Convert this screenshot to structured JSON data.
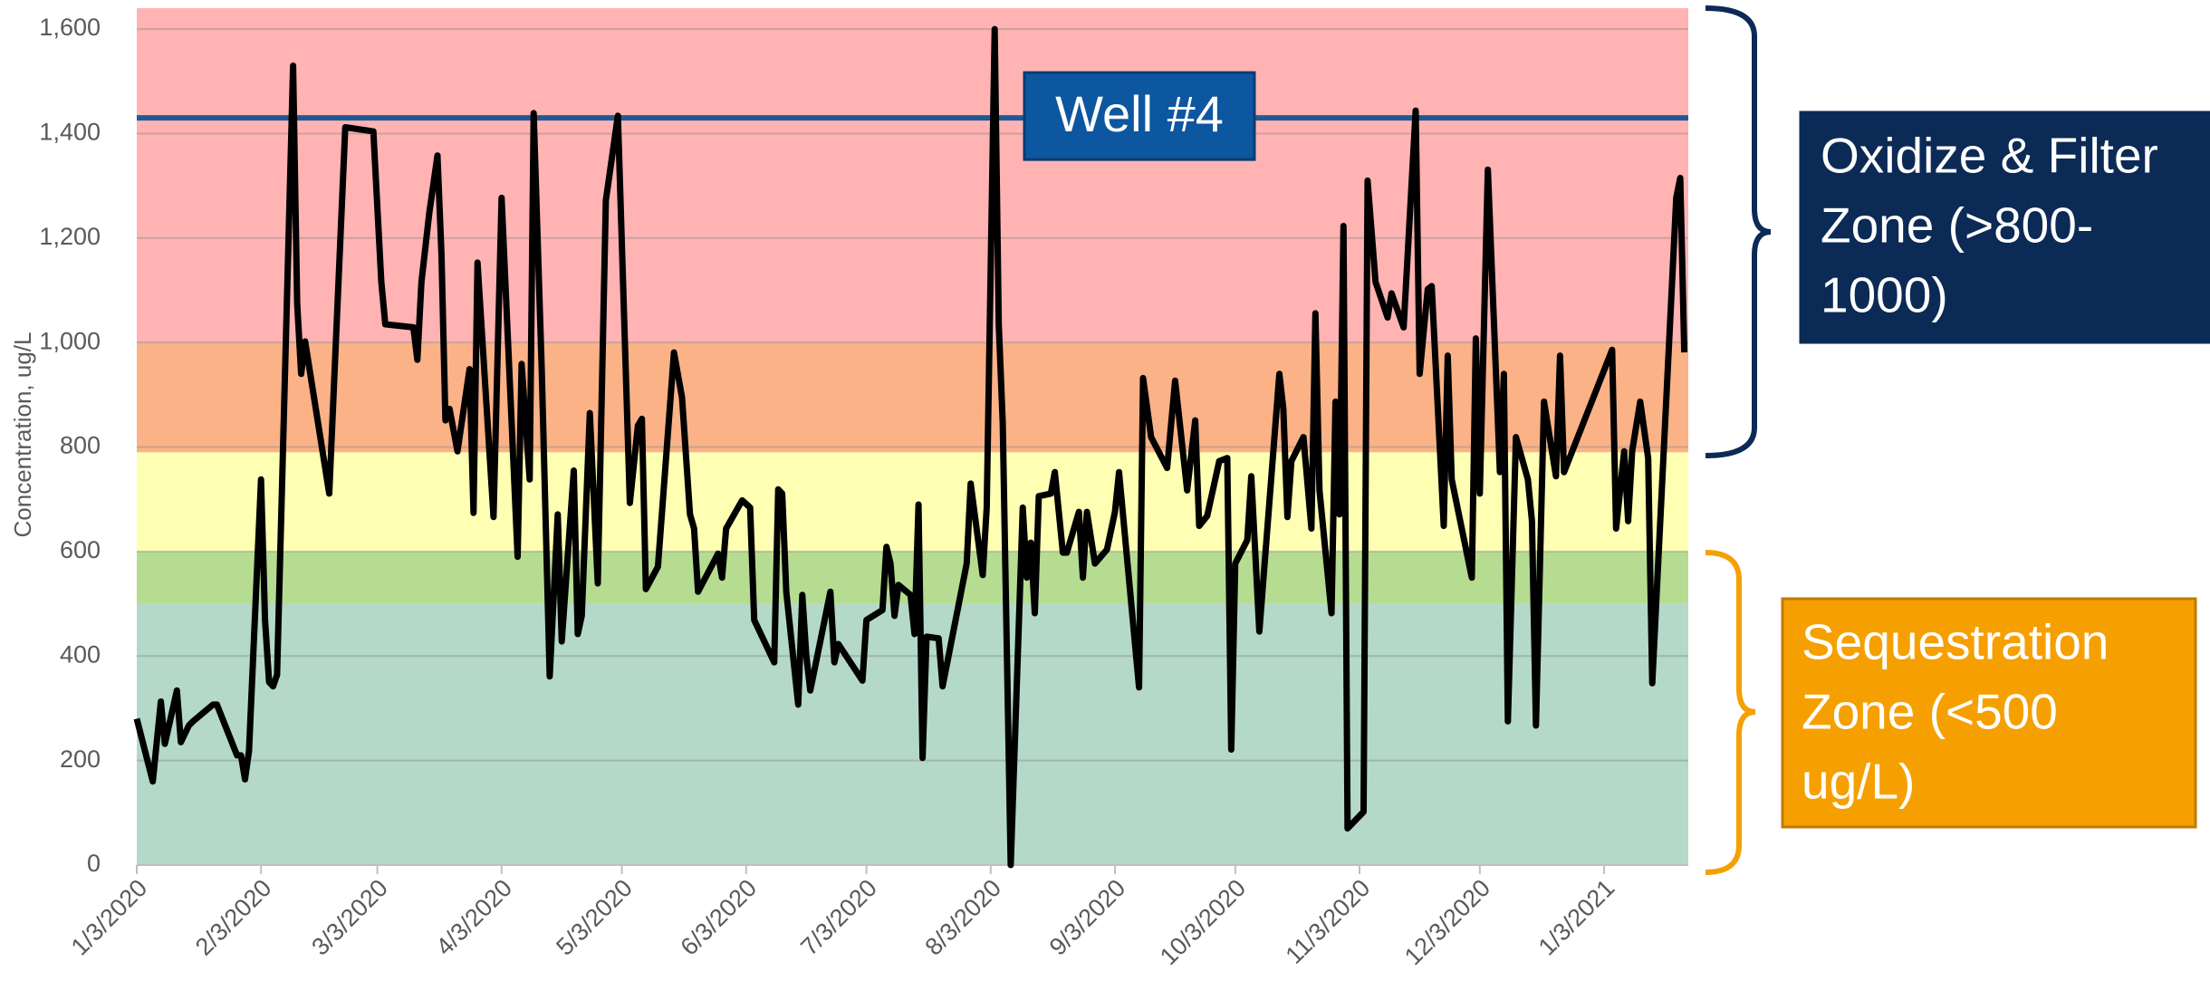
{
  "chart_data": {
    "type": "line",
    "y_label": "Concentration, ug/L",
    "x": [
      "1/3/2020",
      "1/7/2020",
      "1/9/2020",
      "1/10/2020",
      "1/13/2020",
      "1/14/2020",
      "1/16/2020",
      "1/17/2020",
      "1/22/2020",
      "1/23/2020",
      "1/28/2020",
      "1/29/2020",
      "1/30/2020",
      "1/31/2020",
      "2/3/2020",
      "2/4/2020",
      "2/5/2020",
      "2/6/2020",
      "2/7/2020",
      "2/11/2020",
      "2/12/2020",
      "2/13/2020",
      "2/14/2020",
      "2/20/2020",
      "2/24/2020",
      "3/2/2020",
      "3/4/2020",
      "3/5/2020",
      "3/12/2020",
      "3/13/2020",
      "3/14/2020",
      "3/16/2020",
      "3/18/2020",
      "3/19/2020",
      "3/20/2020",
      "3/21/2020",
      "3/23/2020",
      "3/26/2020",
      "3/27/2020",
      "3/28/2020",
      "4/1/2020",
      "4/3/2020",
      "4/7/2020",
      "4/8/2020",
      "4/10/2020",
      "4/11/2020",
      "4/13/2020",
      "4/15/2020",
      "4/17/2020",
      "4/18/2020",
      "4/21/2020",
      "4/22/2020",
      "4/23/2020",
      "4/25/2020",
      "4/27/2020",
      "4/29/2020",
      "5/2/2020",
      "5/5/2020",
      "5/7/2020",
      "5/8/2020",
      "5/9/2020",
      "5/12/2020",
      "5/16/2020",
      "5/18/2020",
      "5/20/2020",
      "5/21/2020",
      "5/22/2020",
      "5/27/2020",
      "5/28/2020",
      "5/29/2020",
      "6/2/2020",
      "6/4/2020",
      "6/5/2020",
      "6/10/2020",
      "6/11/2020",
      "6/12/2020",
      "6/13/2020",
      "6/16/2020",
      "6/17/2020",
      "6/18/2020",
      "6/19/2020",
      "6/24/2020",
      "6/25/2020",
      "6/26/2020",
      "7/2/2020",
      "7/3/2020",
      "7/7/2020",
      "7/8/2020",
      "7/9/2020",
      "7/10/2020",
      "7/11/2020",
      "7/14/2020",
      "7/15/2020",
      "7/16/2020",
      "7/17/2020",
      "7/18/2020",
      "7/21/2020",
      "7/22/2020",
      "7/28/2020",
      "7/29/2020",
      "8/1/2020",
      "8/2/2020",
      "8/4/2020",
      "8/5/2020",
      "8/6/2020",
      "8/8/2020",
      "8/11/2020",
      "8/12/2020",
      "8/13/2020",
      "8/14/2020",
      "8/15/2020",
      "8/18/2020",
      "8/19/2020",
      "8/21/2020",
      "8/22/2020",
      "8/25/2020",
      "8/26/2020",
      "8/27/2020",
      "8/29/2020",
      "9/1/2020",
      "9/3/2020",
      "9/4/2020",
      "9/9/2020",
      "9/10/2020",
      "9/12/2020",
      "9/16/2020",
      "9/18/2020",
      "9/21/2020",
      "9/23/2020",
      "9/24/2020",
      "9/26/2020",
      "9/29/2020",
      "10/1/2020",
      "10/2/2020",
      "10/3/2020",
      "10/6/2020",
      "10/7/2020",
      "10/9/2020",
      "10/14/2020",
      "10/15/2020",
      "10/16/2020",
      "10/17/2020",
      "10/20/2020",
      "10/22/2020",
      "10/23/2020",
      "10/24/2020",
      "10/27/2020",
      "10/28/2020",
      "10/29/2020",
      "10/30/2020",
      "10/31/2020",
      "11/4/2020",
      "11/5/2020",
      "11/7/2020",
      "11/10/2020",
      "11/11/2020",
      "11/14/2020",
      "11/17/2020",
      "11/18/2020",
      "11/20/2020",
      "11/21/2020",
      "11/24/2020",
      "11/25/2020",
      "11/26/2020",
      "12/1/2020",
      "12/2/2020",
      "12/3/2020",
      "12/5/2020",
      "12/8/2020",
      "12/9/2020",
      "12/10/2020",
      "12/12/2020",
      "12/15/2020",
      "12/16/2020",
      "12/17/2020",
      "12/19/2020",
      "12/22/2020",
      "12/23/2020",
      "12/24/2020",
      "1/5/2021",
      "1/6/2021",
      "1/8/2021",
      "1/9/2021",
      "1/10/2021",
      "1/12/2021",
      "1/14/2021",
      "1/15/2021",
      "1/21/2021",
      "1/22/2021",
      "1/23/2021"
    ],
    "values": [
      280,
      160,
      313,
      232,
      334,
      235,
      267,
      275,
      307,
      307,
      210,
      210,
      164,
      218,
      738,
      469,
      350,
      342,
      364,
      1530,
      1075,
      940,
      1002,
      711,
      1412,
      1404,
      1116,
      1035,
      1029,
      967,
      1116,
      1250,
      1358,
      1170,
      851,
      873,
      792,
      949,
      674,
      1153,
      666,
      1277,
      590,
      959,
      738,
      1439,
      949,
      361,
      671,
      428,
      755,
      442,
      477,
      865,
      539,
      1272,
      1434,
      693,
      841,
      854,
      528,
      571,
      981,
      895,
      671,
      644,
      523,
      596,
      550,
      644,
      698,
      684,
      469,
      388,
      719,
      711,
      523,
      307,
      517,
      401,
      334,
      523,
      388,
      423,
      353,
      469,
      488,
      609,
      577,
      477,
      536,
      517,
      442,
      690,
      205,
      437,
      434,
      342,
      577,
      730,
      555,
      684,
      1600,
      1035,
      846,
      0,
      684,
      550,
      617,
      482,
      706,
      711,
      752,
      598,
      598,
      676,
      550,
      676,
      577,
      604,
      676,
      752,
      340,
      932,
      819,
      760,
      927,
      717,
      851,
      649,
      668,
      773,
      779,
      221,
      577,
      622,
      744,
      447,
      940,
      873,
      666,
      773,
      819,
      644,
      1056,
      717,
      482,
      887,
      671,
      1223,
      70,
      102,
      1310,
      1116,
      1048,
      1094,
      1029,
      1444,
      940,
      1102,
      1108,
      649,
      975,
      738,
      550,
      1008,
      711,
      1331,
      752,
      940,
      275,
      819,
      738,
      658,
      267,
      887,
      744,
      975,
      752,
      986,
      644,
      792,
      658,
      792,
      887,
      779,
      348,
      1277,
      1315,
      981
    ],
    "color": "#000000",
    "xlim": [
      "1/3/2020",
      "1/24/2021"
    ],
    "xticks": [
      "1/3/2020",
      "2/3/2020",
      "3/3/2020",
      "4/3/2020",
      "5/3/2020",
      "6/3/2020",
      "7/3/2020",
      "8/3/2020",
      "9/3/2020",
      "10/3/2020",
      "11/3/2020",
      "12/3/2020",
      "1/3/2021"
    ],
    "ylim": [
      0,
      1640
    ],
    "yticks": [
      0,
      200,
      400,
      600,
      800,
      {
        "value": 1000,
        "label": "1,000"
      },
      {
        "value": 1200,
        "label": "1,200"
      },
      {
        "value": 1400,
        "label": "1,400"
      },
      {
        "value": 1600,
        "label": "1,600"
      }
    ],
    "grid": true,
    "bands": [
      {
        "from": 0,
        "to": 500,
        "color": "#b4d9c8"
      },
      {
        "from": 500,
        "to": 600,
        "color": "#b6dc92"
      },
      {
        "from": 600,
        "to": 790,
        "color": "#ffffb3"
      },
      {
        "from": 790,
        "to": 1000,
        "color": "#fbb287"
      },
      {
        "from": 1000,
        "to": 1640,
        "color": "#ffb3b3"
      }
    ],
    "reference_lines": [
      {
        "label": "Well #4",
        "value": 1430,
        "color": "#1f5a96"
      }
    ],
    "annotations": [
      {
        "lines": [
          "Oxidize & Filter",
          "Zone (>800-",
          "1000)"
        ],
        "color": "#0c2a56"
      },
      {
        "lines": [
          "Sequestration",
          "Zone (<500",
          "ug/L)"
        ],
        "color": "#f5a000"
      }
    ]
  }
}
